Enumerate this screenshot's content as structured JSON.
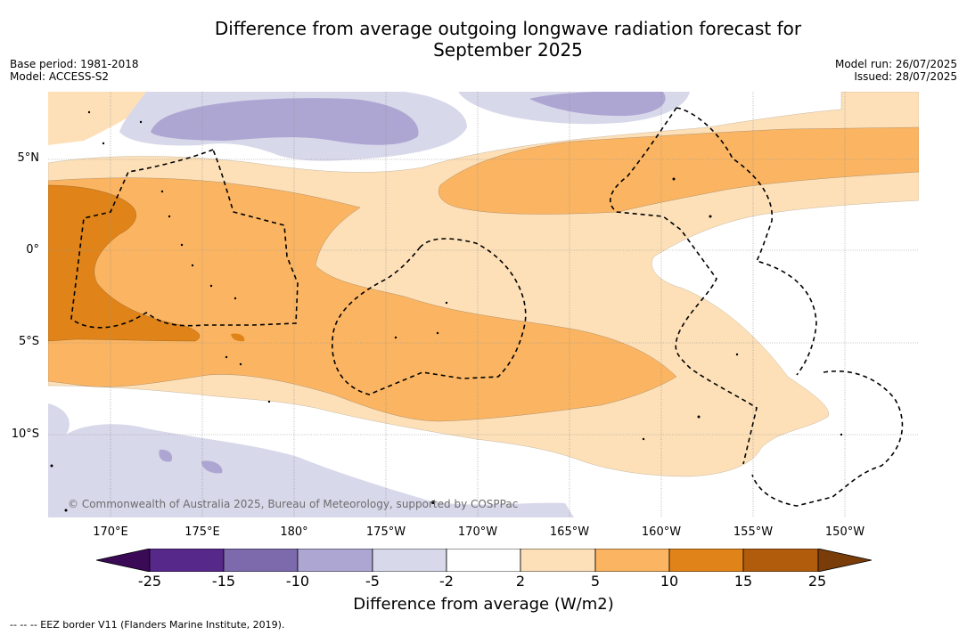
{
  "title": {
    "line1": "Difference from average outgoing longwave radiation forecast for",
    "line2": "September 2025"
  },
  "meta_left": {
    "base_period": "Base period: 1981-2018",
    "model": "Model: ACCESS-S2"
  },
  "meta_right": {
    "model_run": "Model run: 26/07/2025",
    "issued": "Issued: 28/07/2025"
  },
  "lat_labels": [
    "5°N",
    "0°",
    "5°S",
    "10°S"
  ],
  "lon_labels": [
    "170°E",
    "175°E",
    "180°",
    "175°W",
    "170°W",
    "165°W",
    "160°W",
    "155°W",
    "150°W"
  ],
  "copyright": "© Commonwealth of Australia 2025, Bureau of Meteorology, supported by COSPPac",
  "colorbar": {
    "ticks": [
      "-25",
      "-15",
      "-10",
      "-5",
      "-2",
      "2",
      "5",
      "10",
      "15",
      "25"
    ],
    "label": "Difference from average (W/m2)",
    "colors": [
      "#3b0a57",
      "#55288a",
      "#7c6aac",
      "#aea6d2",
      "#d8d8eb",
      "#ffffff",
      "#fde0b8",
      "#fbb562",
      "#e0841a",
      "#b05c0c",
      "#7a3c08"
    ]
  },
  "legend_note": "--  --  -- EEZ border V11 (Flanders Marine Institute, 2019)."
}
